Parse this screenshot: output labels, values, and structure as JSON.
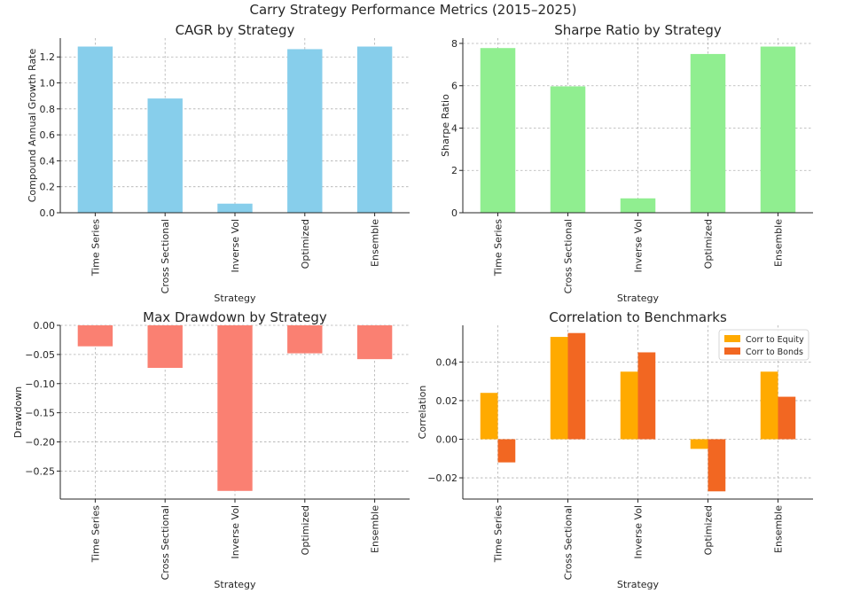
{
  "suptitle": "Carry Strategy Performance Metrics (2015–2025)",
  "colors": {
    "cagr": "#87ceeb",
    "sharpe": "#90ee90",
    "drawdown": "#fa8072",
    "corr_equity": "#ffaa00",
    "corr_bonds": "#f26722"
  },
  "chart_data": [
    {
      "type": "bar",
      "title": "CAGR by Strategy",
      "xlabel": "Strategy",
      "ylabel": "Compound Annual Growth Rate",
      "categories": [
        "Time Series",
        "Cross Sectional",
        "Inverse Vol",
        "Optimized",
        "Ensemble"
      ],
      "values": [
        1.28,
        0.88,
        0.07,
        1.26,
        1.28
      ],
      "ylim": [
        0,
        1.345
      ],
      "yticks": [
        0.0,
        0.2,
        0.4,
        0.6,
        0.8,
        1.0,
        1.2
      ],
      "ytick_labels": [
        "0.0",
        "0.2",
        "0.4",
        "0.6",
        "0.8",
        "1.0",
        "1.2"
      ],
      "grid": true
    },
    {
      "type": "bar",
      "title": "Sharpe Ratio by Strategy",
      "xlabel": "Strategy",
      "ylabel": "Sharpe Ratio",
      "categories": [
        "Time Series",
        "Cross Sectional",
        "Inverse Vol",
        "Optimized",
        "Ensemble"
      ],
      "values": [
        7.78,
        5.97,
        0.68,
        7.5,
        7.85
      ],
      "ylim": [
        0,
        8.25
      ],
      "yticks": [
        0,
        2,
        4,
        6,
        8
      ],
      "ytick_labels": [
        "0",
        "2",
        "4",
        "6",
        "8"
      ],
      "grid": true
    },
    {
      "type": "bar",
      "title": "Max Drawdown by Strategy",
      "xlabel": "Strategy",
      "ylabel": "Drawdown",
      "categories": [
        "Time Series",
        "Cross Sectional",
        "Inverse Vol",
        "Optimized",
        "Ensemble"
      ],
      "values": [
        -0.036,
        -0.073,
        -0.284,
        -0.048,
        -0.058
      ],
      "ylim": [
        -0.298,
        0.0
      ],
      "yticks": [
        0.0,
        -0.05,
        -0.1,
        -0.15,
        -0.2,
        -0.25
      ],
      "ytick_labels": [
        "0.00",
        "−0.05",
        "−0.10",
        "−0.15",
        "−0.20",
        "−0.25"
      ],
      "grid": true
    },
    {
      "type": "bar",
      "title": "Correlation to Benchmarks",
      "xlabel": "Strategy",
      "ylabel": "Correlation",
      "categories": [
        "Time Series",
        "Cross Sectional",
        "Inverse Vol",
        "Optimized",
        "Ensemble"
      ],
      "series": [
        {
          "name": "Corr to Equity",
          "values": [
            0.024,
            0.053,
            0.035,
            -0.005,
            0.035
          ]
        },
        {
          "name": "Corr to Bonds",
          "values": [
            -0.012,
            0.055,
            0.045,
            -0.027,
            0.022
          ]
        }
      ],
      "ylim": [
        -0.031,
        0.059
      ],
      "yticks": [
        -0.02,
        0.0,
        0.02,
        0.04
      ],
      "ytick_labels": [
        "−0.02",
        "0.00",
        "0.02",
        "0.04"
      ],
      "legend": "top-right",
      "grid": true
    }
  ]
}
